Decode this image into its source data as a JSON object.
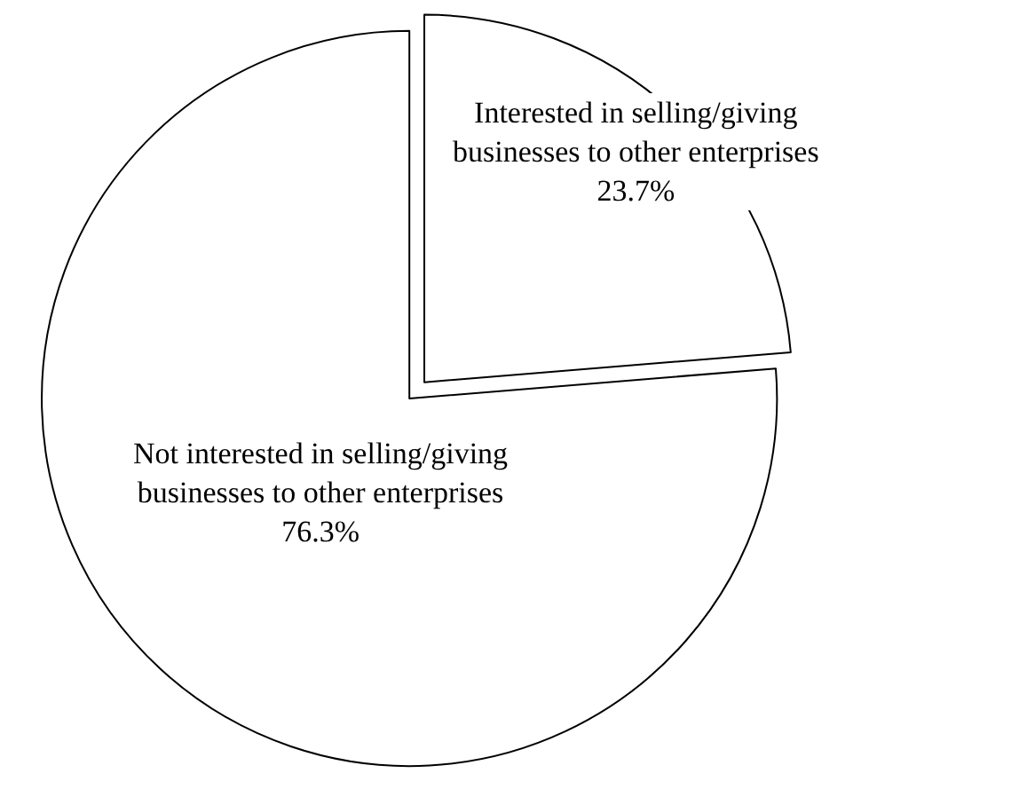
{
  "chart_data": {
    "type": "pie",
    "categories": [
      "Interested in selling/giving businesses to other enterprises",
      "Not interested in selling/giving businesses to other enterprises"
    ],
    "values": [
      23.7,
      76.3
    ],
    "colors": [
      "#ffffff",
      "#ffffff"
    ],
    "value_labels": [
      "23.7%",
      "76.3%"
    ],
    "legend": false
  }
}
